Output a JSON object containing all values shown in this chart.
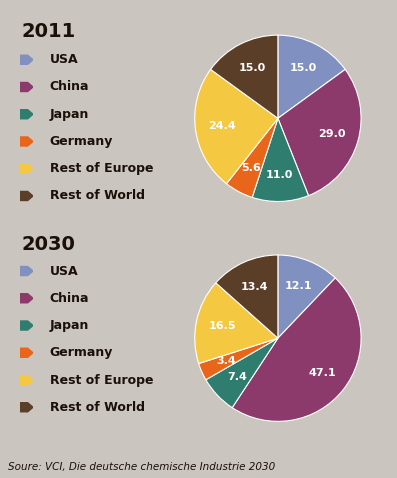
{
  "title_2011": "2011",
  "title_2030": "2030",
  "labels": [
    "USA",
    "China",
    "Japan",
    "Germany",
    "Rest of Europe",
    "Rest of World"
  ],
  "colors": [
    "#8090c0",
    "#8b3a6b",
    "#2e7d6e",
    "#e8651a",
    "#f5c842",
    "#5a3e28"
  ],
  "values_2011": [
    15.0,
    29.0,
    11.0,
    5.6,
    24.4,
    15.0
  ],
  "values_2030": [
    12.1,
    47.1,
    7.4,
    3.4,
    16.5,
    13.4
  ],
  "bg_color": "#cbc5bf",
  "source_text": "Soure: VCI, Die deutsche chemische Industrie 2030",
  "label_color": "#ffffff",
  "title_fontsize": 14,
  "legend_fontsize": 9,
  "source_fontsize": 7.5
}
